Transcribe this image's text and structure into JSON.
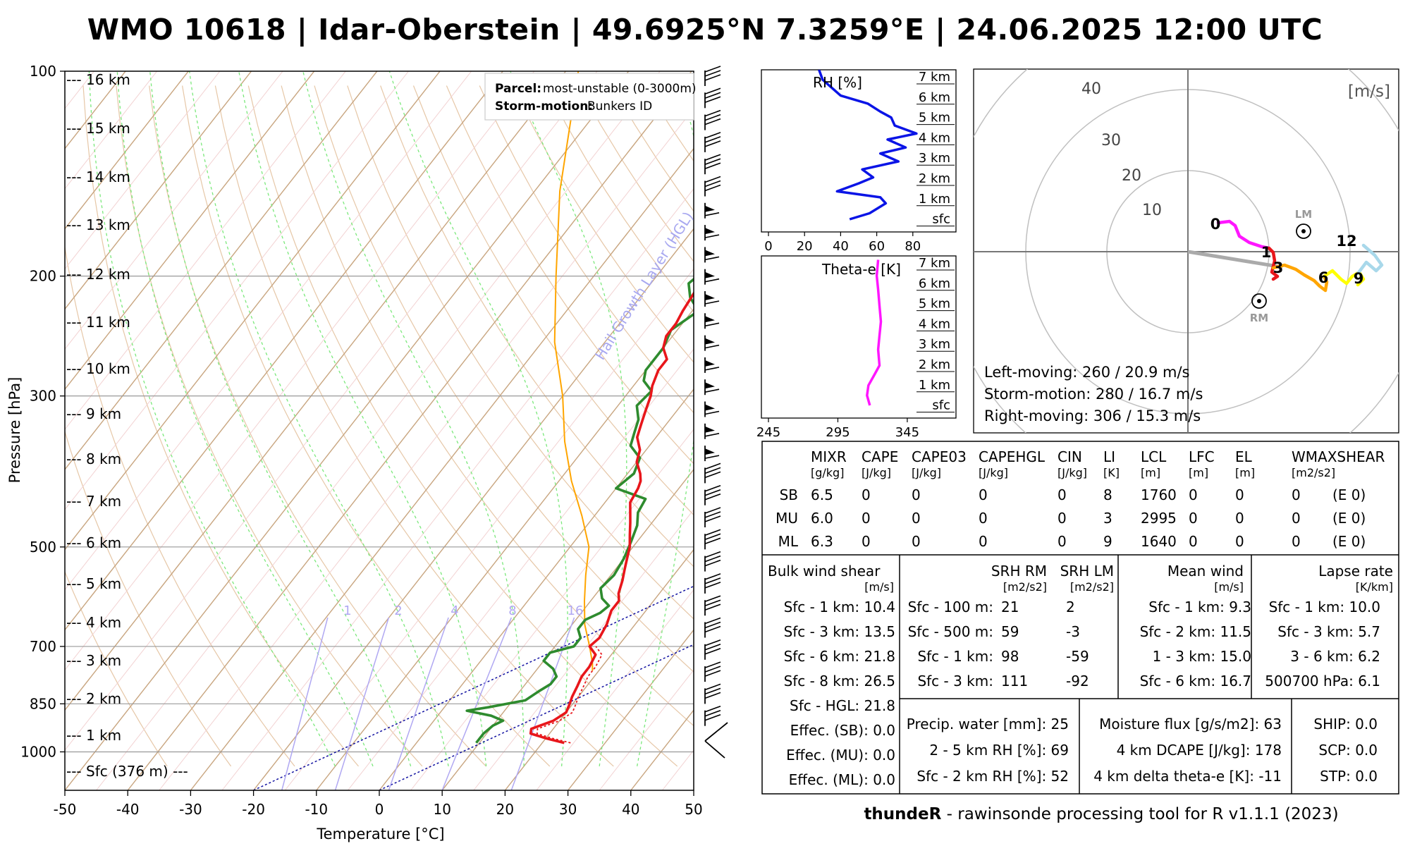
{
  "title": "WMO 10618 | Idar-Oberstein | 49.6925°N 7.3259°E | 24.06.2025 12:00 UTC",
  "footer": {
    "tool": "thundeR",
    "rest": " - rawinsonde processing tool for R v1.1.1 (2023)"
  },
  "colors": {
    "temperature": "#e8161b",
    "dewpoint": "#2e8b2e",
    "parcel": "#ffa500",
    "rh": "#0a14e6",
    "theta_e": "#ff16ff",
    "hail_layer": "#0000a0"
  },
  "skewt": {
    "xlabel": "Temperature [°C]",
    "ylabel": "Pressure [hPa]",
    "x_ticks": [
      "-50",
      "-40",
      "-30",
      "-20",
      "-10",
      "0",
      "10",
      "20",
      "30",
      "40",
      "50"
    ],
    "p_ticks": [
      "100",
      "200",
      "300",
      "500",
      "700",
      "850",
      "1000"
    ],
    "height_labels": [
      "--- 16 km",
      "--- 15 km",
      "--- 14 km",
      "--- 13 km",
      "--- 12 km",
      "--- 11 km",
      "--- 10 km",
      "--- 9 km",
      "--- 8 km",
      "--- 7 km",
      "--- 6 km",
      "--- 5 km",
      "--- 4 km",
      "--- 3 km",
      "--- 2 km",
      "--- 1 km",
      "--- Sfc (376 m) ---"
    ],
    "mixing_ratio_labels": [
      "1",
      "2",
      "4",
      "8",
      "16"
    ],
    "hail_label": "Hail Growth Layer (HGL)",
    "legend": {
      "parcel_key": "Parcel:",
      "parcel_val": "most-unstable (0-3000m)",
      "storm_key": "Storm-motion:",
      "storm_val": "Bunkers ID"
    }
  },
  "rh_panel": {
    "title": "RH [%]",
    "x_ticks": [
      "0",
      "20",
      "40",
      "60",
      "80"
    ],
    "heights": [
      "7 km",
      "6 km",
      "5 km",
      "4 km",
      "3 km",
      "2 km",
      "1 km",
      "sfc"
    ]
  },
  "thetae_panel": {
    "title": "Theta-e [K]",
    "x_ticks": [
      "245",
      "295",
      "345"
    ],
    "heights": [
      "7 km",
      "6 km",
      "5 km",
      "4 km",
      "3 km",
      "2 km",
      "1 km",
      "sfc"
    ]
  },
  "hodograph": {
    "unit": "[m/s]",
    "rings": [
      "10",
      "20",
      "30",
      "40"
    ],
    "lm_label": "LM",
    "rm_label": "RM",
    "height_marks": [
      "0",
      "1",
      "3",
      "6",
      "9",
      "12"
    ],
    "lines": [
      "Left-moving: 260 / 20.9 m/s",
      "Storm-motion: 280 / 16.7 m/s",
      "Right-moving: 306 / 15.3 m/s"
    ]
  },
  "params": {
    "headers": [
      "MIXR",
      "CAPE",
      "CAPE03",
      "CAPEHGL",
      "CIN",
      "LI",
      "LCL",
      "LFC",
      "EL",
      "WMAXSHEAR"
    ],
    "units": [
      "[g/kg]",
      "[J/kg]",
      "[J/kg]",
      "[J/kg]",
      "[J/kg]",
      "[K]",
      "[m]",
      "[m]",
      "[m]",
      "[m2/s2]"
    ],
    "rows": [
      {
        "name": "SB",
        "vals": [
          "6.5",
          "0",
          "0",
          "0",
          "0",
          "8",
          "1760",
          "0",
          "0",
          "0",
          "(E 0)"
        ]
      },
      {
        "name": "MU",
        "vals": [
          "6.0",
          "0",
          "0",
          "0",
          "0",
          "3",
          "2995",
          "0",
          "0",
          "0",
          "(E 0)"
        ]
      },
      {
        "name": "ML",
        "vals": [
          "6.3",
          "0",
          "0",
          "0",
          "0",
          "9",
          "1640",
          "0",
          "0",
          "0",
          "(E 0)"
        ]
      }
    ],
    "bulk_title": "Bulk wind shear",
    "bulk_unit": "[m/s]",
    "bulk": [
      "Sfc - 1 km: 10.4",
      "Sfc - 3 km: 13.5",
      "Sfc - 6 km: 21.8",
      "Sfc - 8 km: 26.5",
      "Sfc - HGL: 21.8",
      "Effec. (SB): 0.0",
      "Effec. (MU): 0.0",
      "Effec. (ML): 0.0"
    ],
    "srh_rm_title": "SRH RM",
    "srh_lm_title": "SRH LM",
    "srh_unit": "[m2/s2]",
    "srh": [
      {
        "label": "Sfc - 100 m:",
        "rm": "21",
        "lm": "2"
      },
      {
        "label": "Sfc - 500 m:",
        "rm": "59",
        "lm": "-3"
      },
      {
        "label": "Sfc - 1 km:",
        "rm": "98",
        "lm": "-59"
      },
      {
        "label": "Sfc - 3 km:",
        "rm": "111",
        "lm": "-92"
      }
    ],
    "mean_title": "Mean wind",
    "mean_unit": "[m/s]",
    "mean": [
      "Sfc - 1 km: 9.3",
      "Sfc - 2 km: 11.5",
      "1 - 3 km: 15.0",
      "Sfc - 6 km: 16.7"
    ],
    "lapse_title": "Lapse rate",
    "lapse_unit": "[K/km]",
    "lapse": [
      "Sfc - 1 km: 10.0",
      "Sfc - 3 km: 5.7",
      "3 - 6 km: 6.2",
      "500700 hPa: 6.1"
    ],
    "moist": [
      "Precip. water [mm]: 25",
      "2 - 5 km RH [%]: 69",
      "Sfc - 2 km RH [%]: 52"
    ],
    "flux": [
      "Moisture flux [g/s/m2]: 63",
      "4 km DCAPE [J/kg]: 178",
      "4 km delta theta-e [K]: -11"
    ],
    "comp": [
      "SHIP: 0.0",
      "SCP: 0.0",
      "STP: 0.0"
    ]
  },
  "chart_data": {
    "type": "line",
    "title": "WMO 10618 | Idar-Oberstein | 49.6925°N 7.3259°E | 24.06.2025 12:00 UTC",
    "xlabel": "Temperature [°C]",
    "ylabel": "Pressure [hPa]",
    "xlim": [
      -50,
      50
    ],
    "ylim": [
      1000,
      100
    ],
    "y_scale": "log",
    "series": [
      {
        "name": "temperature",
        "points": [
          [
            23.5,
            970
          ],
          [
            20,
            955
          ],
          [
            17,
            940
          ],
          [
            16.5,
            925
          ],
          [
            19,
            900
          ],
          [
            20,
            875
          ],
          [
            19.5,
            850
          ],
          [
            19,
            830
          ],
          [
            18.5,
            800
          ],
          [
            18,
            775
          ],
          [
            18,
            750
          ],
          [
            17.5,
            720
          ],
          [
            15.5,
            700
          ],
          [
            16,
            680
          ],
          [
            15.5,
            650
          ],
          [
            14.5,
            620
          ],
          [
            14.5,
            600
          ],
          [
            13.5,
            585
          ],
          [
            12.5,
            560
          ],
          [
            11.5,
            540
          ],
          [
            10.5,
            520
          ],
          [
            9.5,
            500
          ],
          [
            8,
            480
          ],
          [
            6.5,
            460
          ],
          [
            4,
            430
          ],
          [
            3.5,
            410
          ],
          [
            3,
            400
          ],
          [
            2,
            390
          ],
          [
            0,
            375
          ],
          [
            -1,
            360
          ],
          [
            -3,
            345
          ],
          [
            -4,
            330
          ],
          [
            -5,
            315
          ],
          [
            -6,
            300
          ],
          [
            -7,
            290
          ],
          [
            -8,
            275
          ],
          [
            -8,
            265
          ],
          [
            -10,
            255
          ],
          [
            -11,
            245
          ],
          [
            -11,
            235
          ],
          [
            -11.5,
            225
          ],
          [
            -12,
            210
          ],
          [
            -12.5,
            200
          ],
          [
            -13,
            185
          ],
          [
            -12,
            175
          ],
          [
            -11.5,
            165
          ],
          [
            -9.5,
            155
          ],
          [
            -8,
            148
          ],
          [
            -6,
            140
          ],
          [
            -5,
            130
          ],
          [
            -4,
            125
          ],
          [
            -3.5,
            118
          ],
          [
            -1.5,
            112
          ],
          [
            -1,
            106
          ],
          [
            0,
            100
          ]
        ]
      },
      {
        "name": "dewpoint",
        "points": [
          [
            9.5,
            970
          ],
          [
            9.5,
            940
          ],
          [
            10,
            915
          ],
          [
            11,
            900
          ],
          [
            8.5,
            885
          ],
          [
            4,
            870
          ],
          [
            7,
            860
          ],
          [
            12,
            840
          ],
          [
            13,
            815
          ],
          [
            14,
            795
          ],
          [
            14,
            775
          ],
          [
            12.5,
            755
          ],
          [
            10,
            735
          ],
          [
            10,
            715
          ],
          [
            13,
            700
          ],
          [
            13,
            680
          ],
          [
            11.5,
            660
          ],
          [
            11.5,
            640
          ],
          [
            13,
            625
          ],
          [
            13.5,
            610
          ],
          [
            11.5,
            595
          ],
          [
            10,
            575
          ],
          [
            10.5,
            550
          ],
          [
            10,
            520
          ],
          [
            9,
            490
          ],
          [
            8,
            465
          ],
          [
            6.5,
            445
          ],
          [
            6,
            425
          ],
          [
            0,
            410
          ],
          [
            1,
            390
          ],
          [
            0,
            370
          ],
          [
            -3,
            355
          ],
          [
            -4,
            340
          ],
          [
            -5,
            325
          ],
          [
            -7,
            310
          ],
          [
            -6.5,
            295
          ],
          [
            -9,
            285
          ],
          [
            -10,
            275
          ],
          [
            -10,
            255
          ],
          [
            -11,
            240
          ],
          [
            -9,
            225
          ],
          [
            -12,
            215
          ],
          [
            -14,
            205
          ],
          [
            -13,
            195
          ],
          [
            -14.5,
            185
          ],
          [
            -16,
            175
          ],
          [
            -17,
            165
          ],
          [
            -18,
            155
          ],
          [
            -20,
            145
          ],
          [
            -21,
            135
          ],
          [
            -21,
            125
          ],
          [
            -21,
            115
          ],
          [
            -20,
            108
          ],
          [
            -20,
            100
          ]
        ]
      },
      {
        "name": "parcel",
        "points": [
          [
            19,
            760
          ],
          [
            18,
            740
          ],
          [
            15.5,
            700
          ],
          [
            12,
            650
          ],
          [
            9,
            600
          ],
          [
            6,
            550
          ],
          [
            3,
            500
          ],
          [
            -2,
            450
          ],
          [
            -8,
            400
          ],
          [
            -14,
            350
          ],
          [
            -20,
            300
          ],
          [
            -28,
            250
          ],
          [
            -36,
            200
          ],
          [
            -46,
            150
          ],
          [
            -58,
            100
          ]
        ]
      }
    ],
    "rh_profile": {
      "x_unit": "RH [%]",
      "xlim": [
        0,
        100
      ],
      "points": [
        [
          45,
          0
        ],
        [
          56,
          0.3
        ],
        [
          65,
          0.8
        ],
        [
          62,
          1.1
        ],
        [
          38,
          1.4
        ],
        [
          50,
          1.8
        ],
        [
          58,
          2.1
        ],
        [
          52,
          2.5
        ],
        [
          72,
          2.9
        ],
        [
          62,
          3.3
        ],
        [
          76,
          3.6
        ],
        [
          66,
          4.0
        ],
        [
          82,
          4.3
        ],
        [
          70,
          4.7
        ],
        [
          68,
          5.1
        ],
        [
          62,
          5.4
        ],
        [
          55,
          5.8
        ],
        [
          40,
          6.2
        ],
        [
          35,
          6.6
        ],
        [
          30,
          7.0
        ],
        [
          28,
          7.5
        ]
      ]
    },
    "thetae_profile": {
      "x_unit": "Theta-e [K]",
      "xlim": [
        245,
        375
      ],
      "points": [
        [
          318,
          0
        ],
        [
          316,
          0.5
        ],
        [
          317,
          1.0
        ],
        [
          321,
          1.5
        ],
        [
          325,
          2.0
        ],
        [
          324,
          2.8
        ],
        [
          325,
          3.5
        ],
        [
          326,
          4.2
        ],
        [
          325,
          5.0
        ],
        [
          324,
          5.8
        ],
        [
          323,
          6.5
        ],
        [
          324,
          7.3
        ]
      ]
    },
    "hodograph": {
      "unit": "m/s",
      "storm_motion": {
        "left_moving": {
          "dir": 260,
          "speed": 20.9
        },
        "mean": {
          "dir": 280,
          "speed": 16.7
        },
        "right_moving": {
          "dir": 306,
          "speed": 15.3
        }
      }
    }
  }
}
